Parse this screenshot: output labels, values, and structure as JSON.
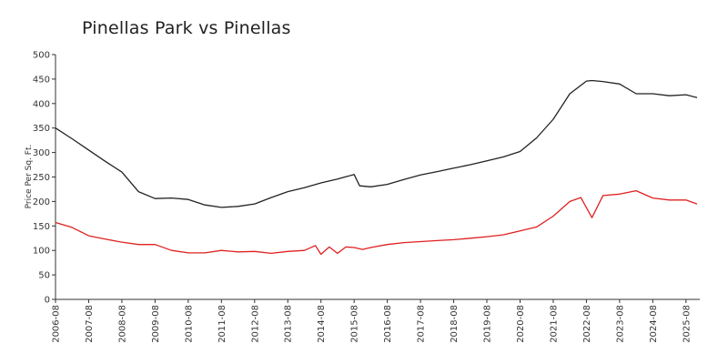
{
  "chart_data": {
    "type": "line",
    "title": "Pinellas Park vs Pinellas",
    "xlabel": "",
    "ylabel": "Price Per Sq. Ft.",
    "ylim": [
      0,
      500
    ],
    "yticks": [
      0,
      50,
      100,
      150,
      200,
      250,
      300,
      350,
      400,
      450,
      500
    ],
    "xlim": [
      "2006-08",
      "2026-01"
    ],
    "xticks": [
      "2006-08",
      "2007-08",
      "2008-08",
      "2009-08",
      "2010-08",
      "2011-08",
      "2012-08",
      "2013-08",
      "2014-08",
      "2015-08",
      "2016-08",
      "2017-08",
      "2018-08",
      "2019-08",
      "2020-08",
      "2021-08",
      "2022-08",
      "2023-08",
      "2024-08",
      "2025-08"
    ],
    "grid": false,
    "legend": "none",
    "series": [
      {
        "color": "#222222",
        "x": [
          "2006-08",
          "2007-02",
          "2007-08",
          "2008-02",
          "2008-08",
          "2009-02",
          "2009-08",
          "2010-02",
          "2010-08",
          "2011-02",
          "2011-08",
          "2012-02",
          "2012-08",
          "2013-02",
          "2013-08",
          "2014-02",
          "2014-08",
          "2015-02",
          "2015-08",
          "2015-10",
          "2016-02",
          "2016-08",
          "2017-02",
          "2017-08",
          "2018-02",
          "2018-08",
          "2019-02",
          "2019-08",
          "2020-02",
          "2020-08",
          "2021-02",
          "2021-08",
          "2022-02",
          "2022-08",
          "2022-10",
          "2023-02",
          "2023-08",
          "2024-02",
          "2024-08",
          "2025-02",
          "2025-08",
          "2025-12"
        ],
        "values": [
          350,
          328,
          305,
          282,
          260,
          220,
          206,
          207,
          204,
          193,
          188,
          190,
          195,
          208,
          220,
          228,
          238,
          246,
          255,
          232,
          230,
          235,
          245,
          254,
          261,
          268,
          275,
          283,
          291,
          302,
          330,
          368,
          420,
          446,
          447,
          445,
          440,
          420,
          420,
          416,
          418,
          412
        ]
      },
      {
        "color": "#e02020",
        "x": [
          "2006-08",
          "2007-02",
          "2007-08",
          "2008-02",
          "2008-08",
          "2009-02",
          "2009-08",
          "2010-02",
          "2010-08",
          "2011-02",
          "2011-08",
          "2012-02",
          "2012-08",
          "2013-02",
          "2013-08",
          "2014-02",
          "2014-06",
          "2014-08",
          "2014-11",
          "2015-02",
          "2015-05",
          "2015-08",
          "2015-11",
          "2016-02",
          "2016-08",
          "2017-02",
          "2017-08",
          "2018-02",
          "2018-08",
          "2019-02",
          "2019-08",
          "2020-02",
          "2020-08",
          "2021-02",
          "2021-08",
          "2022-02",
          "2022-06",
          "2022-10",
          "2023-02",
          "2023-08",
          "2024-02",
          "2024-08",
          "2025-02",
          "2025-08",
          "2025-12"
        ],
        "values": [
          157,
          147,
          130,
          123,
          117,
          112,
          112,
          100,
          95,
          95,
          100,
          97,
          98,
          94,
          98,
          100,
          110,
          92,
          107,
          94,
          107,
          106,
          102,
          106,
          112,
          116,
          118,
          120,
          122,
          125,
          128,
          132,
          140,
          148,
          170,
          200,
          208,
          167,
          212,
          215,
          222,
          207,
          203,
          203,
          195
        ]
      }
    ]
  }
}
